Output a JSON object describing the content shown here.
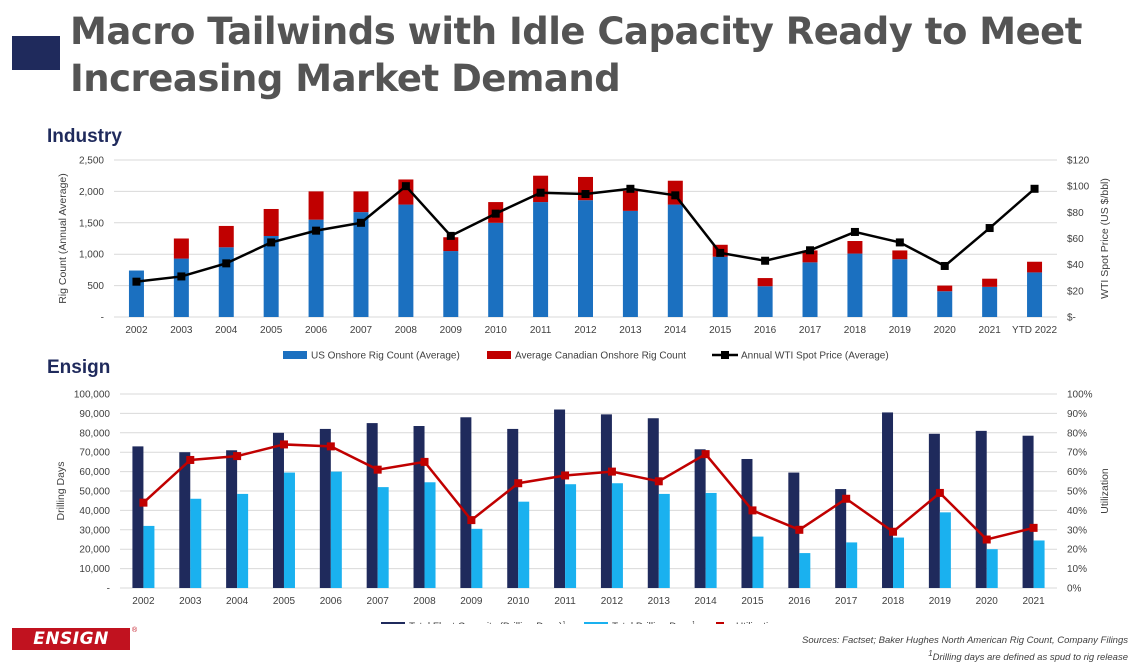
{
  "title": {
    "line1": "Macro Tailwinds with Idle Capacity Ready to Meet",
    "line2": "Increasing Market Demand"
  },
  "colors": {
    "accent": "#1f2a5c",
    "us_bar": "#1b70c0",
    "canada_bar": "#c00000",
    "wti_line": "#000000",
    "fleet_bar": "#1f2a5c",
    "drilling_bar": "#1ab1ef",
    "utilization_line": "#c00000",
    "logo": "#c1121f"
  },
  "sections": {
    "industry": "Industry",
    "ensign": "Ensign"
  },
  "logo": {
    "text": "ENSIGN",
    "reg": "®"
  },
  "footer": {
    "sources": "Sources: Factset; Baker Hughes North American Rig Count, Company Filings",
    "note_sup": "1",
    "note": "Drilling days are defined as spud to rig release"
  },
  "chart_data": [
    {
      "type": "bar",
      "stacked": true,
      "categories": [
        "2002",
        "2003",
        "2004",
        "2005",
        "2006",
        "2007",
        "2008",
        "2009",
        "2010",
        "2011",
        "2012",
        "2013",
        "2014",
        "2015",
        "2016",
        "2017",
        "2018",
        "2019",
        "2020",
        "2021",
        "YTD 2022"
      ],
      "series": [
        {
          "name": "US Onshore Rig Count (Average)",
          "axis": "left",
          "values": [
            740,
            930,
            1110,
            1290,
            1550,
            1670,
            1790,
            1050,
            1500,
            1830,
            1860,
            1690,
            1790,
            960,
            490,
            870,
            1010,
            920,
            410,
            480,
            710
          ]
        },
        {
          "name": "Average Canadian Onshore Rig Count",
          "axis": "left",
          "values": [
            0,
            320,
            340,
            430,
            450,
            330,
            400,
            220,
            330,
            420,
            370,
            320,
            380,
            190,
            130,
            190,
            200,
            140,
            90,
            130,
            170
          ]
        },
        {
          "name": "Annual WTI Spot Price (Average)",
          "type": "line",
          "axis": "right",
          "values": [
            27,
            31,
            41,
            57,
            66,
            72,
            100,
            62,
            79,
            95,
            94,
            98,
            93,
            49,
            43,
            51,
            65,
            57,
            39,
            68,
            98
          ]
        }
      ],
      "ylabel": "Rig Count (Annual Average)",
      "y2label": "WTI Spot Price (US $/bbl)",
      "ylim": [
        0,
        2500
      ],
      "y2lim": [
        0,
        120
      ],
      "y_ticks": [
        "-",
        "500",
        "1,000",
        "1,500",
        "2,000",
        "2,500"
      ],
      "y2_ticks": [
        "$-",
        "$20",
        "$40",
        "$60",
        "$80",
        "$100",
        "$120"
      ],
      "legend": "bottom"
    },
    {
      "type": "bar",
      "categories": [
        "2002",
        "2003",
        "2004",
        "2005",
        "2006",
        "2007",
        "2008",
        "2009",
        "2010",
        "2011",
        "2012",
        "2013",
        "2014",
        "2015",
        "2016",
        "2017",
        "2018",
        "2019",
        "2020",
        "2021"
      ],
      "series": [
        {
          "name": "Total Fleet Capacity (Drilling Days)",
          "sup": "1",
          "axis": "left",
          "values": [
            73000,
            70000,
            71000,
            80000,
            82000,
            85000,
            83500,
            88000,
            82000,
            92000,
            89500,
            87500,
            71500,
            66500,
            59500,
            51000,
            90500,
            79500,
            81000,
            78500
          ]
        },
        {
          "name": "Total Drilling Days",
          "sup": "1",
          "axis": "left",
          "values": [
            32000,
            46000,
            48500,
            59500,
            60000,
            52000,
            54500,
            30500,
            44500,
            53500,
            54000,
            48500,
            49000,
            26500,
            18000,
            23500,
            26000,
            39000,
            20000,
            24500
          ]
        },
        {
          "name": "Utilization",
          "type": "line",
          "axis": "right",
          "values": [
            44,
            66,
            68,
            74,
            73,
            61,
            65,
            35,
            54,
            58,
            60,
            55,
            69,
            40,
            30,
            46,
            29,
            49,
            25,
            31
          ]
        }
      ],
      "ylabel": "Drilling Days",
      "y2label": "Utilization",
      "ylim": [
        0,
        100000
      ],
      "y2lim": [
        0,
        100
      ],
      "y_ticks": [
        "-",
        "10,000",
        "20,000",
        "30,000",
        "40,000",
        "50,000",
        "60,000",
        "70,000",
        "80,000",
        "90,000",
        "100,000"
      ],
      "y2_ticks": [
        "0%",
        "10%",
        "20%",
        "30%",
        "40%",
        "50%",
        "60%",
        "70%",
        "80%",
        "90%",
        "100%"
      ],
      "legend": "bottom"
    }
  ]
}
